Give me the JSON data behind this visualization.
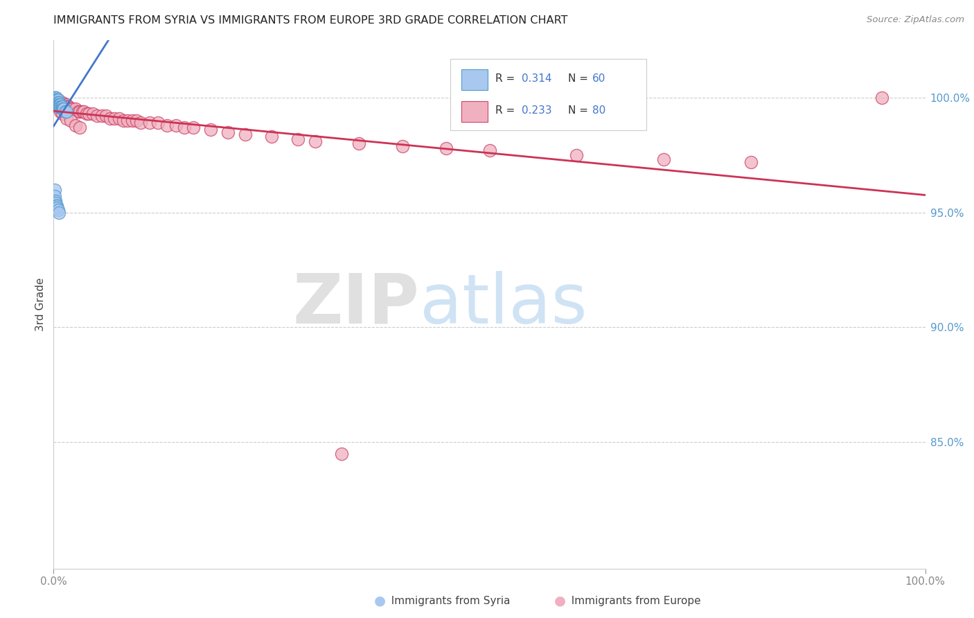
{
  "title": "IMMIGRANTS FROM SYRIA VS IMMIGRANTS FROM EUROPE 3RD GRADE CORRELATION CHART",
  "source": "Source: ZipAtlas.com",
  "ylabel": "3rd Grade",
  "color_syria": "#a8c8f0",
  "color_syria_edge": "#5599cc",
  "color_europe": "#f0b0c0",
  "color_europe_edge": "#cc4466",
  "line_color_syria": "#4477cc",
  "line_color_europe": "#cc3355",
  "r_syria": "0.314",
  "n_syria": "60",
  "r_europe": "0.233",
  "n_europe": "80",
  "legend_color": "#4477cc",
  "yticks": [
    0.85,
    0.9,
    0.95,
    1.0
  ],
  "ytick_labels": [
    "85.0%",
    "90.0%",
    "95.0%",
    "100.0%"
  ],
  "xrange": [
    0.0,
    1.0
  ],
  "yrange": [
    0.795,
    1.025
  ],
  "syria_line_x0": 0.0,
  "syria_line_y0": 0.993,
  "syria_line_x1": 0.06,
  "syria_line_y1": 1.003,
  "europe_line_x0": 0.0,
  "europe_line_y0": 0.9955,
  "europe_line_x1": 1.0,
  "europe_line_y1": 1.003,
  "syria_x": [
    0.001,
    0.001,
    0.001,
    0.001,
    0.001,
    0.001,
    0.001,
    0.002,
    0.002,
    0.002,
    0.002,
    0.002,
    0.002,
    0.002,
    0.002,
    0.003,
    0.003,
    0.003,
    0.003,
    0.003,
    0.003,
    0.003,
    0.003,
    0.004,
    0.004,
    0.004,
    0.004,
    0.004,
    0.005,
    0.005,
    0.005,
    0.005,
    0.005,
    0.006,
    0.006,
    0.006,
    0.006,
    0.007,
    0.007,
    0.007,
    0.008,
    0.008,
    0.009,
    0.009,
    0.01,
    0.01,
    0.011,
    0.012,
    0.013,
    0.015,
    0.001,
    0.001,
    0.002,
    0.002,
    0.003,
    0.003,
    0.004,
    0.004,
    0.005,
    0.006
  ],
  "syria_y": [
    1.0,
    1.0,
    0.999,
    0.999,
    0.999,
    0.999,
    0.998,
    1.0,
    1.0,
    0.999,
    0.999,
    0.998,
    0.998,
    0.997,
    0.997,
    1.0,
    0.999,
    0.999,
    0.998,
    0.998,
    0.997,
    0.997,
    0.996,
    0.999,
    0.999,
    0.998,
    0.998,
    0.997,
    0.999,
    0.998,
    0.998,
    0.997,
    0.997,
    0.998,
    0.998,
    0.997,
    0.997,
    0.997,
    0.997,
    0.996,
    0.997,
    0.996,
    0.996,
    0.996,
    0.996,
    0.995,
    0.995,
    0.995,
    0.994,
    0.994,
    0.96,
    0.957,
    0.955,
    0.954,
    0.953,
    0.952,
    0.953,
    0.952,
    0.951,
    0.95
  ],
  "europe_x": [
    0.001,
    0.001,
    0.002,
    0.002,
    0.003,
    0.003,
    0.003,
    0.004,
    0.004,
    0.005,
    0.005,
    0.005,
    0.006,
    0.006,
    0.007,
    0.007,
    0.008,
    0.008,
    0.009,
    0.01,
    0.01,
    0.011,
    0.012,
    0.013,
    0.014,
    0.015,
    0.015,
    0.016,
    0.017,
    0.018,
    0.02,
    0.022,
    0.025,
    0.028,
    0.03,
    0.033,
    0.035,
    0.038,
    0.04,
    0.045,
    0.05,
    0.055,
    0.06,
    0.065,
    0.07,
    0.075,
    0.08,
    0.085,
    0.09,
    0.095,
    0.1,
    0.11,
    0.12,
    0.13,
    0.14,
    0.15,
    0.16,
    0.18,
    0.2,
    0.22,
    0.25,
    0.28,
    0.3,
    0.35,
    0.4,
    0.45,
    0.5,
    0.6,
    0.7,
    0.8,
    0.003,
    0.005,
    0.008,
    0.01,
    0.015,
    0.02,
    0.025,
    0.03,
    0.33,
    0.95
  ],
  "europe_y": [
    0.999,
    0.999,
    0.999,
    0.999,
    0.999,
    0.999,
    0.998,
    0.999,
    0.998,
    0.999,
    0.998,
    0.998,
    0.998,
    0.998,
    0.998,
    0.997,
    0.998,
    0.997,
    0.997,
    0.998,
    0.997,
    0.997,
    0.997,
    0.996,
    0.996,
    0.997,
    0.996,
    0.996,
    0.996,
    0.995,
    0.995,
    0.995,
    0.995,
    0.994,
    0.994,
    0.994,
    0.994,
    0.993,
    0.993,
    0.993,
    0.992,
    0.992,
    0.992,
    0.991,
    0.991,
    0.991,
    0.99,
    0.99,
    0.99,
    0.99,
    0.989,
    0.989,
    0.989,
    0.988,
    0.988,
    0.987,
    0.987,
    0.986,
    0.985,
    0.984,
    0.983,
    0.982,
    0.981,
    0.98,
    0.979,
    0.978,
    0.977,
    0.975,
    0.973,
    0.972,
    0.997,
    0.996,
    0.994,
    0.993,
    0.991,
    0.99,
    0.988,
    0.987,
    0.845,
    1.0
  ]
}
